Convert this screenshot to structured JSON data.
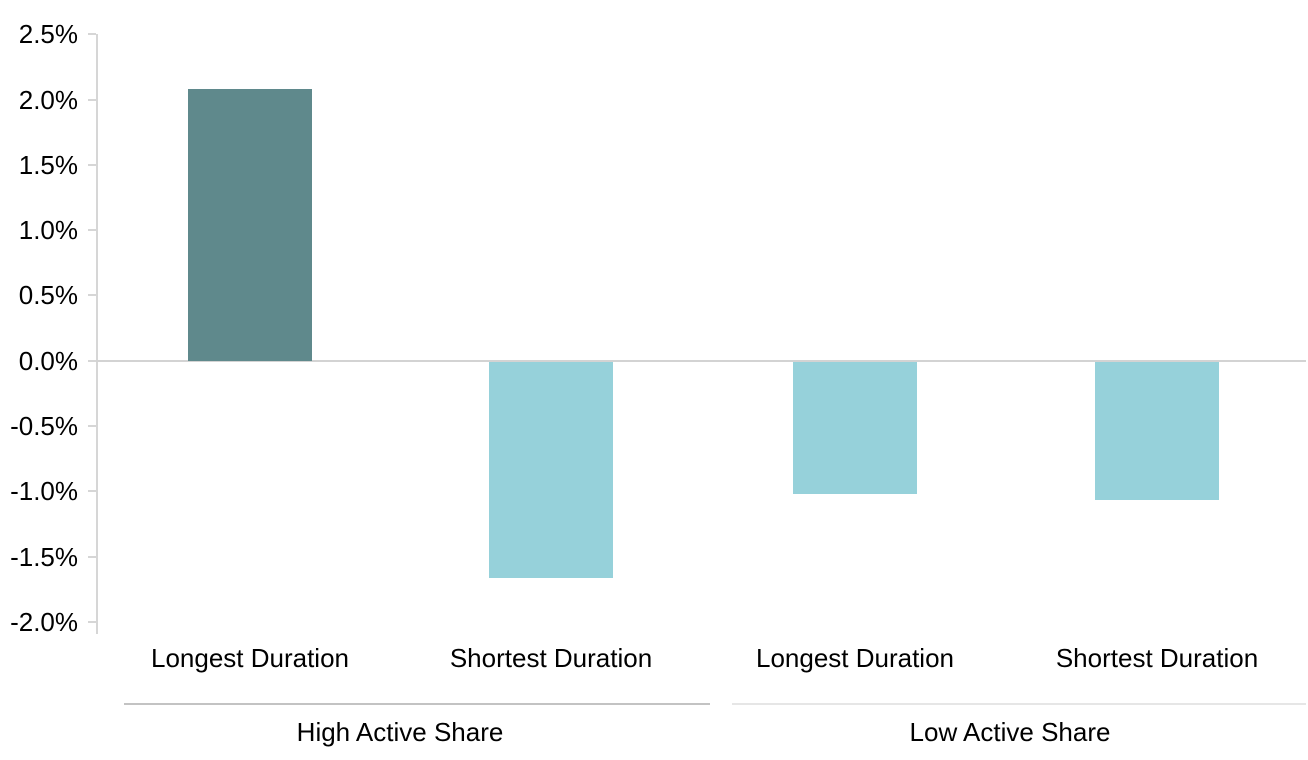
{
  "chart_data": {
    "type": "bar",
    "title": "",
    "xlabel": "",
    "ylabel": "",
    "legend": "none",
    "grid": "zero-baseline-only",
    "ylim": [
      -2.0,
      2.5
    ],
    "categories": [
      "Longest Duration",
      "Shortest Duration",
      "Longest Duration",
      "Shortest Duration"
    ],
    "values": [
      2.08,
      -1.66,
      -1.01,
      -1.06
    ],
    "value_unit": "percent",
    "bar_colors": [
      "#5F898C",
      "#96D1DA",
      "#96D1DA",
      "#96D1DA"
    ],
    "groups": [
      {
        "label": "High Active Share",
        "first_bar": 0,
        "last_bar": 1
      },
      {
        "label": "Low Active Share",
        "first_bar": 2,
        "last_bar": 3
      }
    ],
    "y_ticks": [
      {
        "value": 2.5,
        "label": "2.5%"
      },
      {
        "value": 2.0,
        "label": "2.0%"
      },
      {
        "value": 1.5,
        "label": "1.5%"
      },
      {
        "value": 1.0,
        "label": "1.0%"
      },
      {
        "value": 0.5,
        "label": "0.5%"
      },
      {
        "value": 0.0,
        "label": "0.0%"
      },
      {
        "value": -0.5,
        "label": "-0.5%"
      },
      {
        "value": -1.0,
        "label": "-1.0%"
      },
      {
        "value": -1.5,
        "label": "-1.5%"
      },
      {
        "value": -2.0,
        "label": "-2.0%"
      }
    ]
  },
  "colors": {
    "highlight_bar": "#5F898C",
    "regular_bar": "#96D1DA",
    "axis": "#d6d6d6",
    "zero_line": "#d3d3d3",
    "separator_left": "#c3c3c3",
    "separator_right": "#e6e6e6",
    "text": "#000000",
    "background": "#FFFFFF"
  }
}
